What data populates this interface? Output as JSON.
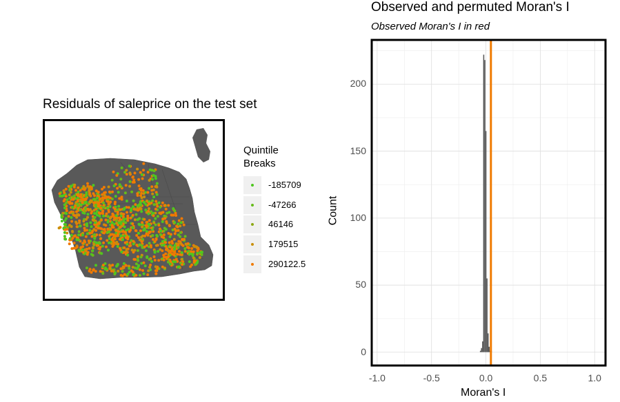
{
  "map": {
    "title": "Residuals of saleprice on the test set",
    "legend_title_line1": "Quintile",
    "legend_title_line2": "Breaks",
    "legend": [
      {
        "label": "-185709",
        "color": "#4dc71f"
      },
      {
        "label": "-47266",
        "color": "#66bb1a"
      },
      {
        "label": "46146",
        "color": "#8ca814"
      },
      {
        "label": "179515",
        "color": "#c98f0a"
      },
      {
        "label": "290122.5",
        "color": "#f07a00"
      }
    ],
    "base_color": "#595959"
  },
  "histogram": {
    "title": "Observed and permuted Moran's I",
    "subtitle": "Observed Moran's I in red",
    "observed_line_color": "#f07a00"
  },
  "chart_data": {
    "type": "bar",
    "title": "Observed and permuted Moran's I",
    "subtitle": "Observed Moran's I in red",
    "xlabel": "Moran's I",
    "ylabel": "Count",
    "xlim": [
      -1.05,
      1.1
    ],
    "ylim": [
      -10,
      233
    ],
    "x_ticks": [
      "-1.0",
      "-0.5",
      "0.0",
      "0.5",
      "1.0"
    ],
    "y_ticks": [
      "0",
      "50",
      "100",
      "150",
      "200"
    ],
    "bins": [
      -0.05,
      -0.04,
      -0.03,
      -0.02,
      -0.01,
      0.0,
      0.01,
      0.02,
      0.03,
      0.04,
      0.05
    ],
    "values": [
      1,
      3,
      8,
      222,
      218,
      165,
      55,
      14,
      4,
      1,
      1
    ],
    "observed": 0.046,
    "grid": true,
    "bar_color": "#595959",
    "observed_color": "#f07a00"
  }
}
